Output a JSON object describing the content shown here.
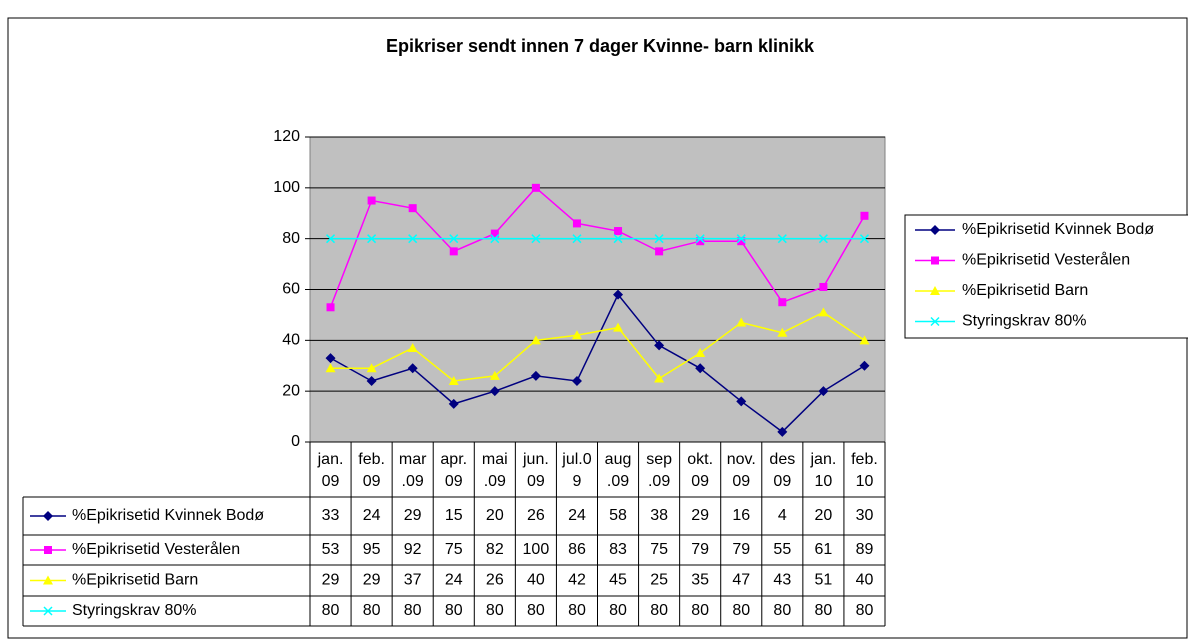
{
  "chart_data": {
    "type": "line",
    "title": "Epikriser sendt innen 7 dager Kvinne- barn klinikk",
    "categories": [
      "jan. 09",
      "feb. 09",
      "mar .09",
      "apr. 09",
      "mai .09",
      "jun. 09",
      "jul.0 9",
      "aug .09",
      "sep .09",
      "okt. 09",
      "nov. 09",
      "des 09",
      "jan. 10",
      "feb. 10"
    ],
    "series": [
      {
        "name": "%Epikrisetid Kvinnek Bodø",
        "color": "#000080",
        "marker": "diamond",
        "values": [
          33,
          24,
          29,
          15,
          20,
          26,
          24,
          58,
          38,
          29,
          16,
          4,
          20,
          30
        ]
      },
      {
        "name": "%Epikrisetid Vesterålen",
        "color": "#ff00ff",
        "marker": "square",
        "values": [
          53,
          95,
          92,
          75,
          82,
          100,
          86,
          83,
          75,
          79,
          79,
          55,
          61,
          89
        ]
      },
      {
        "name": "%Epikrisetid Barn",
        "color": "#ffff00",
        "marker": "triangle",
        "values": [
          29,
          29,
          37,
          24,
          26,
          40,
          42,
          45,
          25,
          35,
          47,
          43,
          51,
          40
        ]
      },
      {
        "name": "Styringskrav 80%",
        "color": "#00ffff",
        "marker": "x",
        "values": [
          80,
          80,
          80,
          80,
          80,
          80,
          80,
          80,
          80,
          80,
          80,
          80,
          80,
          80
        ]
      }
    ],
    "ylim": [
      0,
      120
    ],
    "yticks": [
      0,
      20,
      40,
      60,
      80,
      100,
      120
    ],
    "grid": true,
    "legend": "right",
    "data_table": true
  }
}
